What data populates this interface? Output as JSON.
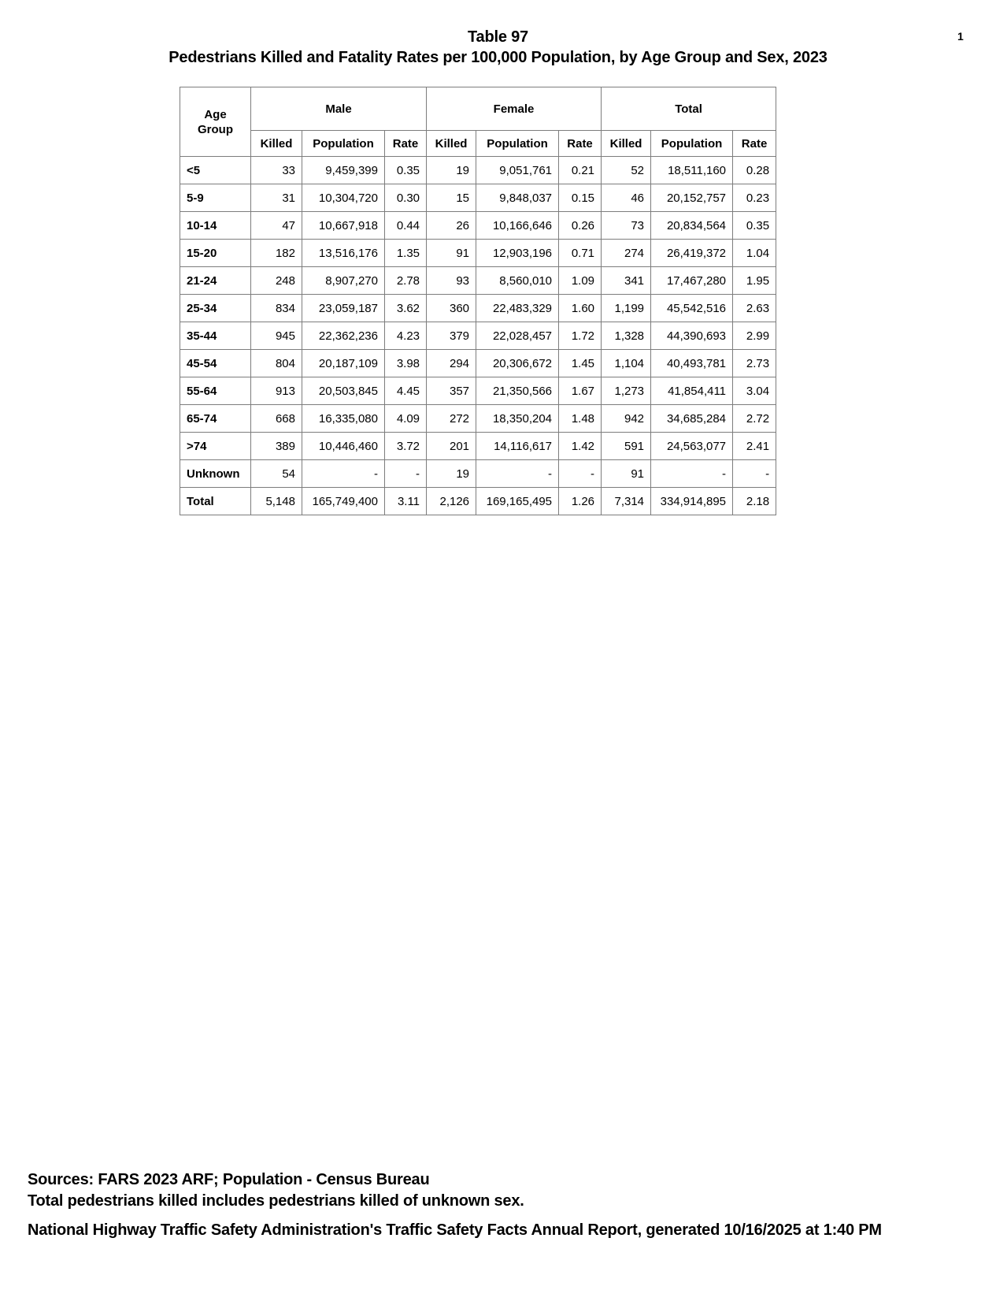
{
  "page": {
    "number": "1",
    "title_line1": "Table 97",
    "title_line2": "Pedestrians Killed and Fatality Rates per 100,000 Population, by Age Group and Sex, 2023"
  },
  "table": {
    "corner_header": "Age Group",
    "group_headers": [
      "Male",
      "Female",
      "Total"
    ],
    "sub_headers": [
      "Killed",
      "Population",
      "Rate"
    ],
    "rows": [
      [
        "<5",
        "33",
        "9,459,399",
        "0.35",
        "19",
        "9,051,761",
        "0.21",
        "52",
        "18,511,160",
        "0.28"
      ],
      [
        "5-9",
        "31",
        "10,304,720",
        "0.30",
        "15",
        "9,848,037",
        "0.15",
        "46",
        "20,152,757",
        "0.23"
      ],
      [
        "10-14",
        "47",
        "10,667,918",
        "0.44",
        "26",
        "10,166,646",
        "0.26",
        "73",
        "20,834,564",
        "0.35"
      ],
      [
        "15-20",
        "182",
        "13,516,176",
        "1.35",
        "91",
        "12,903,196",
        "0.71",
        "274",
        "26,419,372",
        "1.04"
      ],
      [
        "21-24",
        "248",
        "8,907,270",
        "2.78",
        "93",
        "8,560,010",
        "1.09",
        "341",
        "17,467,280",
        "1.95"
      ],
      [
        "25-34",
        "834",
        "23,059,187",
        "3.62",
        "360",
        "22,483,329",
        "1.60",
        "1,199",
        "45,542,516",
        "2.63"
      ],
      [
        "35-44",
        "945",
        "22,362,236",
        "4.23",
        "379",
        "22,028,457",
        "1.72",
        "1,328",
        "44,390,693",
        "2.99"
      ],
      [
        "45-54",
        "804",
        "20,187,109",
        "3.98",
        "294",
        "20,306,672",
        "1.45",
        "1,104",
        "40,493,781",
        "2.73"
      ],
      [
        "55-64",
        "913",
        "20,503,845",
        "4.45",
        "357",
        "21,350,566",
        "1.67",
        "1,273",
        "41,854,411",
        "3.04"
      ],
      [
        "65-74",
        "668",
        "16,335,080",
        "4.09",
        "272",
        "18,350,204",
        "1.48",
        "942",
        "34,685,284",
        "2.72"
      ],
      [
        ">74",
        "389",
        "10,446,460",
        "3.72",
        "201",
        "14,116,617",
        "1.42",
        "591",
        "24,563,077",
        "2.41"
      ],
      [
        "Unknown",
        "54",
        "-",
        "-",
        "19",
        "-",
        "-",
        "91",
        "-",
        "-"
      ],
      [
        "Total",
        "5,148",
        "165,749,400",
        "3.11",
        "2,126",
        "169,165,495",
        "1.26",
        "7,314",
        "334,914,895",
        "2.18"
      ]
    ]
  },
  "footer": {
    "sources_line1": "Sources: FARS 2023 ARF; Population - Census Bureau",
    "sources_line2": "Total pedestrians killed includes pedestrians killed of unknown sex.",
    "generated_line": "National Highway Traffic Safety Administration's Traffic Safety Facts Annual Report, generated 10/16/2025 at 1:40 PM"
  }
}
